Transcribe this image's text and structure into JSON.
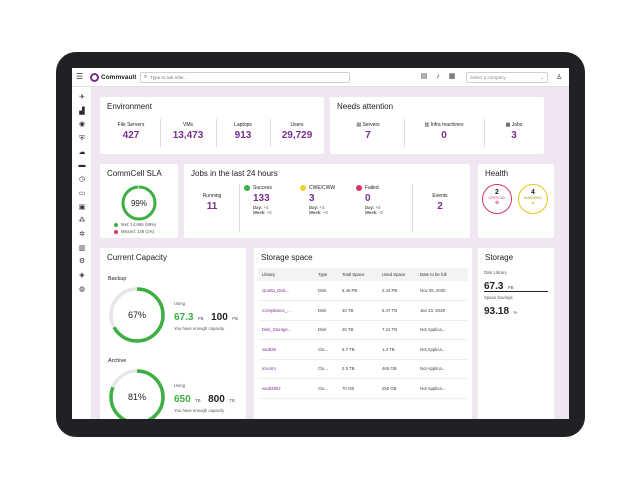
{
  "topbar": {
    "app_name": "Commvault",
    "search_placeholder": "Type to ask Arlie...",
    "company_placeholder": "Select a company",
    "icons": [
      "clipboard-icon",
      "bell-icon",
      "grid-icon"
    ],
    "user_icon": "user-icon"
  },
  "sidebar": {
    "icons": [
      "guided-setup-icon",
      "dashboard-icon",
      "protect-icon",
      "shield-icon",
      "cloud-icon",
      "jobs-icon",
      "monitor-icon",
      "storage-icon",
      "server-icon",
      "network-icon",
      "settings-icon",
      "reports-icon",
      "workflow-icon",
      "cube-icon",
      "globe-icon"
    ]
  },
  "environment": {
    "title": "Environment",
    "stats": [
      {
        "label": "File Servers",
        "value": "427"
      },
      {
        "label": "VMs",
        "value": "13,473"
      },
      {
        "label": "Laptops",
        "value": "913"
      },
      {
        "label": "Users",
        "value": "29,729"
      }
    ]
  },
  "attention": {
    "title": "Needs attention",
    "stats": [
      {
        "label": "Servers",
        "value": "7"
      },
      {
        "label": "Infra machines",
        "value": "0"
      },
      {
        "label": "Jobs",
        "value": "3"
      }
    ]
  },
  "sla": {
    "title": "CommCell SLA",
    "percent": "99%",
    "fraction": 0.99,
    "met": "Met: 14,665 (99%)",
    "missed": "Missed: 148 (1%)",
    "met_color": "#3cb043",
    "missed_color": "#d6336c"
  },
  "jobs24": {
    "title": "Jobs in the last 24 hours",
    "running_label": "Running",
    "running_value": "11",
    "success_label": "Success",
    "success_value": "133",
    "success_day": "+4",
    "success_week": "+2",
    "cwe_label": "CWE/CWW",
    "cwe_value": "3",
    "cwe_day": "+3",
    "cwe_week": "+3",
    "failed_label": "Failed",
    "failed_value": "0",
    "failed_day": "+0",
    "failed_week": "-3",
    "day_label": "Day:",
    "week_label": "Week:",
    "events_label": "Events",
    "events_value": "2"
  },
  "health": {
    "title": "Health",
    "critical_value": "2",
    "critical_label": "CRITICAL",
    "warning_value": "4",
    "warning_label": "WARNING",
    "critical_color": "#d6336c",
    "warning_color": "#e6c619"
  },
  "capacity": {
    "title": "Current Capacity",
    "backup": {
      "label": "Backup",
      "percent": "67%",
      "fraction": 0.67,
      "using_label": "Using",
      "used": "67.3",
      "used_unit": "PB",
      "total": "100",
      "total_unit": "PB",
      "note": "You have enough capacity"
    },
    "archive": {
      "label": "Archive",
      "percent": "81%",
      "fraction": 0.81,
      "using_label": "Using",
      "used": "650",
      "used_unit": "TB",
      "total": "800",
      "total_unit": "TB",
      "note": "You have enough capacity"
    }
  },
  "storage_space": {
    "title": "Storage space",
    "columns": [
      "Library",
      "Type",
      "Total Space",
      "Used Space",
      "Date to be full"
    ],
    "rows": [
      [
        "Quotta_Disk...",
        "Disk",
        "5.46 PB",
        "2.44 PB",
        "Nov 05, 2030"
      ],
      [
        "Compliance_...",
        "Disk",
        "30 TB",
        "5.47 TB",
        "Jan 23, 2038"
      ],
      [
        "Disk_Storage...",
        "Disk",
        "25 TB",
        "7.21 TB",
        "Not Applica..."
      ],
      [
        "vault28",
        "Clo...",
        "6.7 TB",
        "1.4 TB",
        "Not Applica..."
      ],
      [
        "szvorm",
        "Clo...",
        "2.5 TB",
        "465 GB",
        "Not Applica..."
      ],
      [
        "vault2802",
        "Clo...",
        "70 GB",
        "250 GB",
        "Not Applica..."
      ]
    ]
  },
  "storage": {
    "title": "Storage",
    "disk_label": "Disk Library",
    "disk_value": "67.3",
    "disk_unit": "PB",
    "savings_label": "Space Savings",
    "savings_value": "93.18",
    "savings_unit": "%"
  },
  "colors": {
    "accent": "#7a2e90",
    "green": "#3cb043",
    "panel_bg": "#efe6f2"
  }
}
